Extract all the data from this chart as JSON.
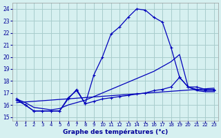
{
  "title": "Graphe des températures (°c)",
  "bg_color": "#d6f0f0",
  "grid_color": "#a8cccc",
  "line_color": "#0000bb",
  "ylim": [
    14.7,
    24.5
  ],
  "xlim": [
    -0.5,
    23.5
  ],
  "yticks": [
    15,
    16,
    17,
    18,
    19,
    20,
    21,
    22,
    23,
    24
  ],
  "xticks": [
    0,
    1,
    2,
    3,
    4,
    5,
    6,
    7,
    8,
    9,
    10,
    11,
    12,
    13,
    14,
    15,
    16,
    17,
    18,
    19,
    20,
    21,
    22,
    23
  ],
  "curve1_x": [
    0,
    1,
    2,
    3,
    4,
    5,
    6,
    7,
    8,
    9,
    10,
    11,
    12,
    13,
    14,
    15,
    16,
    17,
    18,
    19,
    20,
    21,
    22,
    23
  ],
  "curve1_y": [
    16.5,
    16.0,
    15.5,
    15.5,
    15.5,
    15.5,
    16.5,
    17.3,
    16.1,
    18.5,
    20.0,
    21.9,
    22.5,
    23.3,
    24.0,
    23.9,
    23.3,
    22.9,
    20.8,
    18.3,
    17.5,
    17.5,
    17.3,
    17.3
  ],
  "curve2_x": [
    0,
    1,
    2,
    3,
    4,
    5,
    6,
    7,
    8,
    9,
    10,
    11,
    12,
    13,
    14,
    15,
    16,
    17,
    18,
    19,
    20,
    21,
    22,
    23
  ],
  "curve2_y": [
    16.5,
    16.2,
    15.8,
    15.7,
    15.6,
    15.7,
    16.0,
    16.2,
    16.4,
    16.7,
    17.0,
    17.3,
    17.6,
    17.9,
    18.2,
    18.5,
    18.8,
    19.2,
    19.6,
    20.2,
    17.5,
    17.2,
    17.1,
    17.1
  ],
  "curve3_x": [
    0,
    1,
    2,
    3,
    4,
    5,
    6,
    7,
    8,
    9,
    10,
    11,
    12,
    13,
    14,
    15,
    16,
    17,
    18,
    19,
    20,
    21,
    22,
    23
  ],
  "curve3_y": [
    16.4,
    16.0,
    15.5,
    15.5,
    15.5,
    15.5,
    16.6,
    17.2,
    16.1,
    16.3,
    16.5,
    16.6,
    16.7,
    16.8,
    16.9,
    17.0,
    17.2,
    17.3,
    17.5,
    18.3,
    17.5,
    17.3,
    17.2,
    17.2
  ],
  "line4_x": [
    0,
    23
  ],
  "line4_y": [
    16.2,
    17.4
  ]
}
